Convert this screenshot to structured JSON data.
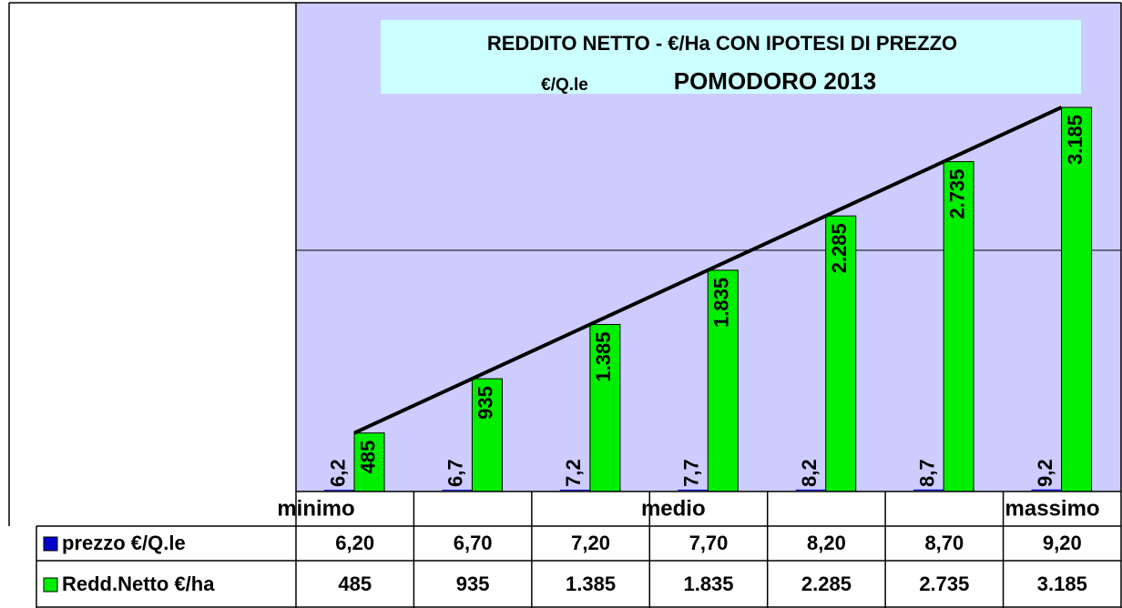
{
  "chart_data": {
    "type": "bar",
    "title": [
      "REDDITO NETTO - €/Ha CON  IPOTESI DI PREZZO",
      "€/Q.le",
      "POMODORO 2013"
    ],
    "categories": [
      "minimo",
      null,
      null,
      "medio",
      null,
      null,
      "massimo"
    ],
    "series": [
      {
        "name": "prezzo €/Q.le",
        "color": "#0000cc",
        "values": [
          6.2,
          6.7,
          7.2,
          7.7,
          8.2,
          8.7,
          9.2
        ],
        "value_labels": [
          "6,2",
          "6,7",
          "7,2",
          "7,7",
          "8,2",
          "8,7",
          "9,2"
        ],
        "table": [
          "6,20",
          "6,70",
          "7,20",
          "7,70",
          "8,20",
          "8,70",
          "9,20"
        ]
      },
      {
        "name": "Redd.Netto €/ha",
        "color": "#00ee00",
        "values": [
          485,
          935,
          1385,
          1835,
          2285,
          2735,
          3185
        ],
        "value_labels": [
          "485",
          "935",
          "1.385",
          "1.835",
          "2.285",
          "2.735",
          "3.185"
        ],
        "table": [
          "485",
          "935",
          "1.385",
          "1.835",
          "2.285",
          "2.735",
          "3.185"
        ]
      }
    ],
    "ylim": [
      0,
      4000
    ],
    "yticks": [
      0,
      2000,
      4000
    ],
    "grid": true
  }
}
